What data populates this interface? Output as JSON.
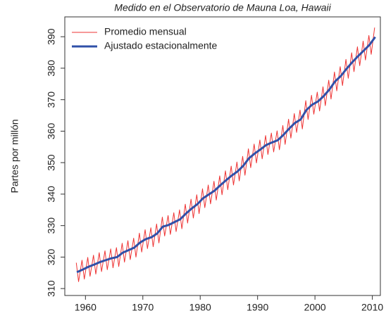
{
  "chart_data": {
    "type": "line",
    "title": "Medido en el Observatorio de Mauna Loa, Hawaii",
    "y_label": "Partes por millón",
    "xlim": [
      1956.4,
      2011.4
    ],
    "xticks": [
      1960,
      1970,
      1980,
      1990,
      2000,
      2010
    ],
    "ylim": [
      307.8,
      396.3
    ],
    "yticks": [
      310,
      320,
      330,
      340,
      350,
      360,
      370,
      380,
      390
    ],
    "legend": "top-left",
    "series": [
      {
        "name": "Promedio mensual",
        "color": "#ee3333",
        "width": 1,
        "x": [
          1958.4,
          1958.8,
          1959.4,
          1959.8,
          1960.4,
          1960.8,
          1961.4,
          1961.8,
          1962.4,
          1962.8,
          1963.4,
          1963.8,
          1964.4,
          1964.8,
          1965.4,
          1965.8,
          1966.4,
          1966.8,
          1967.4,
          1967.8,
          1968.4,
          1968.8,
          1969.4,
          1969.8,
          1970.4,
          1970.8,
          1971.4,
          1971.8,
          1972.4,
          1972.8,
          1973.4,
          1973.8,
          1974.4,
          1974.8,
          1975.4,
          1975.8,
          1976.4,
          1976.8,
          1977.4,
          1977.8,
          1978.4,
          1978.8,
          1979.4,
          1979.8,
          1980.4,
          1980.8,
          1981.4,
          1981.8,
          1982.4,
          1982.8,
          1983.4,
          1983.8,
          1984.4,
          1984.8,
          1985.4,
          1985.8,
          1986.4,
          1986.8,
          1987.4,
          1987.8,
          1988.4,
          1988.8,
          1989.4,
          1989.8,
          1990.4,
          1990.8,
          1991.4,
          1991.8,
          1992.4,
          1992.8,
          1993.4,
          1993.8,
          1994.4,
          1994.8,
          1995.4,
          1995.8,
          1996.4,
          1996.8,
          1997.4,
          1997.8,
          1998.4,
          1998.8,
          1999.4,
          1999.8,
          2000.4,
          2000.8,
          2001.4,
          2001.8,
          2002.4,
          2002.8,
          2003.4,
          2003.8,
          2004.4,
          2004.8,
          2005.4,
          2005.8,
          2006.4,
          2006.8,
          2007.4,
          2007.8,
          2008.4,
          2008.8,
          2009.4,
          2009.8,
          2010.4
        ],
        "values": [
          318.2,
          312.2,
          319.0,
          313.0,
          319.9,
          313.9,
          320.6,
          314.6,
          321.4,
          315.4,
          322.0,
          316.0,
          322.6,
          316.6,
          323.0,
          317.0,
          324.4,
          318.4,
          325.2,
          319.2,
          326.0,
          320.0,
          327.6,
          321.6,
          328.7,
          322.7,
          329.3,
          323.3,
          330.5,
          324.5,
          332.7,
          326.7,
          333.2,
          327.2,
          334.1,
          328.1,
          335.0,
          329.0,
          336.8,
          330.8,
          338.4,
          332.4,
          339.8,
          333.8,
          341.7,
          335.7,
          342.9,
          336.9,
          344.1,
          338.1,
          345.8,
          339.8,
          347.4,
          341.4,
          348.9,
          342.9,
          350.2,
          344.2,
          352.0,
          346.0,
          354.4,
          348.4,
          355.9,
          349.9,
          357.2,
          351.2,
          358.6,
          352.6,
          359.4,
          353.4,
          360.1,
          354.1,
          361.8,
          355.8,
          363.8,
          357.8,
          365.6,
          359.6,
          366.7,
          360.7,
          369.7,
          363.7,
          371.4,
          365.4,
          372.4,
          366.4,
          374.1,
          368.1,
          376.2,
          370.2,
          378.8,
          372.8,
          380.5,
          374.5,
          382.8,
          376.8,
          384.9,
          378.9,
          386.8,
          380.8,
          388.6,
          382.6,
          390.4,
          384.4,
          392.9
        ]
      },
      {
        "name": "Ajustado estacionalmente",
        "color": "#3050a8",
        "width": 3,
        "x": [
          1958.5,
          1959.5,
          1960.5,
          1961.5,
          1962.5,
          1963.5,
          1964.5,
          1965.5,
          1966.5,
          1967.5,
          1968.5,
          1969.5,
          1970.5,
          1971.5,
          1972.5,
          1973.5,
          1974.5,
          1975.5,
          1976.5,
          1977.5,
          1978.5,
          1979.5,
          1980.5,
          1981.5,
          1982.5,
          1983.5,
          1984.5,
          1985.5,
          1986.5,
          1987.5,
          1988.5,
          1989.5,
          1990.5,
          1991.5,
          1992.5,
          1993.5,
          1994.5,
          1995.5,
          1996.5,
          1997.5,
          1998.5,
          1999.5,
          2000.5,
          2001.5,
          2002.5,
          2003.5,
          2004.5,
          2005.5,
          2006.5,
          2007.5,
          2008.5,
          2009.5,
          2010.5
        ],
        "values": [
          315.2,
          316.0,
          316.9,
          317.6,
          318.4,
          319.0,
          319.6,
          320.0,
          321.4,
          322.2,
          323.0,
          324.6,
          325.7,
          326.3,
          327.5,
          329.7,
          330.2,
          331.1,
          332.0,
          333.8,
          335.4,
          336.8,
          338.7,
          339.9,
          341.1,
          342.8,
          344.4,
          345.9,
          347.2,
          349.0,
          351.4,
          352.9,
          354.2,
          355.6,
          356.4,
          357.1,
          358.8,
          360.8,
          362.6,
          363.7,
          366.7,
          368.4,
          369.4,
          371.1,
          373.2,
          375.8,
          377.5,
          379.8,
          381.9,
          383.8,
          385.6,
          387.4,
          389.9
        ]
      }
    ]
  }
}
